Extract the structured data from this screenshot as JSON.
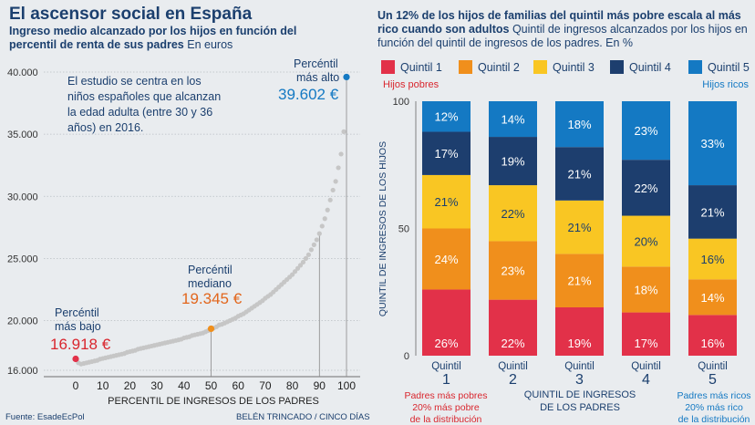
{
  "left": {
    "title": "El ascensor social en España",
    "subtitle_bold": "Ingreso medio alcanzado por los hijos en función del percentil de renta de sus padres",
    "subtitle_unit": "En euros",
    "note": [
      "El estudio se centra en los",
      "niños españoles que alcanzan",
      "la edad adulta (entre 30 y 36",
      "años) en 2016."
    ],
    "labels": {
      "low_title": [
        "Percéntil",
        "más bajo"
      ],
      "low_value": "16.918 €",
      "mid_title": [
        "Percéntil",
        "mediano"
      ],
      "mid_value": "19.345 €",
      "high_title": [
        "Percéntil",
        "más alto"
      ],
      "high_value": "39.602 €"
    },
    "source": "Fuente: EsadeEcPol"
  },
  "right": {
    "title_bold": "Un 12% de los hijos de familias del quintil más pobre escala al más rico cuando son adultos",
    "title_rest": "Quintil de ingresos alcanzados por los hijos en función del quintil de ingresos de los padres. En %",
    "hint_poor": "Hijos pobres",
    "hint_rich": "Hijos ricos",
    "q_prefix": "Quintil",
    "note_left": [
      "Padres más pobres",
      "20% más pobre",
      "de la distribución"
    ],
    "note_right": [
      "Padres más ricos",
      "20% más rico",
      "de la distribución"
    ],
    "credit": "BELÉN TRINCADO / CINCO DÍAS"
  },
  "colors": {
    "q1": "#e23149",
    "q2": "#f08f1c",
    "q3": "#f9c623",
    "q4": "#1d3e6e",
    "q5": "#1479c3",
    "navy": "#1b3f6e",
    "red_text": "#d9262e",
    "orange_text": "#e2661c",
    "blue_text": "#1479c3",
    "dots": "#c6c6c6",
    "background": "#e9ecef"
  },
  "chart_data": [
    {
      "type": "scatter",
      "xlabel": "PERCENTIL DE INGRESOS DE LOS PADRES",
      "ylabel": "",
      "xlim": [
        0,
        100
      ],
      "ylim": [
        16000,
        40000
      ],
      "x_ticks": [
        0,
        10,
        20,
        30,
        40,
        50,
        60,
        70,
        80,
        90,
        100
      ],
      "y_ticks": [
        16000,
        20000,
        25000,
        30000,
        35000,
        40000
      ],
      "y_tick_labels": [
        "16.000",
        "20.000",
        "25.000",
        "30.000",
        "35.000",
        "40.000"
      ],
      "highlights": [
        {
          "x": 0,
          "y": 16918
        },
        {
          "x": 50,
          "y": 19345
        },
        {
          "x": 100,
          "y": 39602
        }
      ],
      "x": [
        0,
        1,
        2,
        3,
        4,
        5,
        6,
        7,
        8,
        9,
        10,
        11,
        12,
        13,
        14,
        15,
        16,
        17,
        18,
        19,
        20,
        21,
        22,
        23,
        24,
        25,
        26,
        27,
        28,
        29,
        30,
        31,
        32,
        33,
        34,
        35,
        36,
        37,
        38,
        39,
        40,
        41,
        42,
        43,
        44,
        45,
        46,
        47,
        48,
        49,
        50,
        51,
        52,
        53,
        54,
        55,
        56,
        57,
        58,
        59,
        60,
        61,
        62,
        63,
        64,
        65,
        66,
        67,
        68,
        69,
        70,
        71,
        72,
        73,
        74,
        75,
        76,
        77,
        78,
        79,
        80,
        81,
        82,
        83,
        84,
        85,
        86,
        87,
        88,
        89,
        90,
        91,
        92,
        93,
        94,
        95,
        96,
        97,
        98,
        99,
        100
      ],
      "y": [
        16918,
        16600,
        16500,
        16550,
        16600,
        16650,
        16700,
        16750,
        16800,
        16900,
        16950,
        17000,
        17050,
        17100,
        17150,
        17200,
        17250,
        17300,
        17350,
        17450,
        17500,
        17550,
        17600,
        17700,
        17750,
        17800,
        17850,
        17900,
        17950,
        18000,
        18050,
        18100,
        18150,
        18200,
        18250,
        18300,
        18350,
        18400,
        18450,
        18500,
        18600,
        18650,
        18700,
        18800,
        18850,
        18900,
        18950,
        19000,
        19100,
        19200,
        19345,
        19400,
        19500,
        19650,
        19700,
        19800,
        19900,
        20000,
        20100,
        20200,
        20350,
        20450,
        20550,
        20700,
        20850,
        21000,
        21150,
        21300,
        21450,
        21600,
        21800,
        21950,
        22100,
        22300,
        22500,
        22700,
        22900,
        23100,
        23300,
        23500,
        23700,
        23950,
        24200,
        24450,
        24700,
        25000,
        25300,
        25700,
        26100,
        26500,
        27000,
        27600,
        28200,
        28900,
        29700,
        30500,
        31200,
        32300,
        33400,
        35200,
        39602
      ]
    },
    {
      "type": "bar",
      "stacked": true,
      "xlabel": "QUINTIL DE INGRESOS DE LOS PADRES",
      "ylabel": "QUINTIL DE INGRESOS DE LOS HIJOS",
      "ylim": [
        0,
        100
      ],
      "y_ticks": [
        0,
        50,
        100
      ],
      "categories": [
        "1",
        "2",
        "3",
        "4",
        "5"
      ],
      "series": [
        {
          "name": "Quintil 1",
          "values": [
            26,
            22,
            19,
            17,
            16
          ]
        },
        {
          "name": "Quintil 2",
          "values": [
            24,
            23,
            21,
            18,
            14
          ]
        },
        {
          "name": "Quintil 3",
          "values": [
            21,
            22,
            21,
            20,
            16
          ]
        },
        {
          "name": "Quintil 4",
          "values": [
            17,
            19,
            21,
            22,
            21
          ]
        },
        {
          "name": "Quintil 5",
          "values": [
            12,
            14,
            18,
            23,
            33
          ]
        }
      ]
    }
  ]
}
